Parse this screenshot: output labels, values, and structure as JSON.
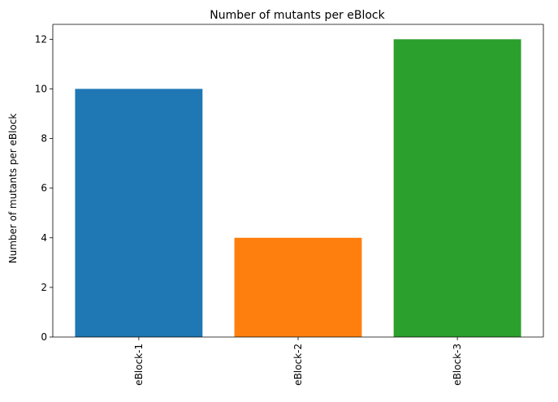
{
  "chart_data": {
    "type": "bar",
    "title": "Number of mutants per eBlock",
    "xlabel": "",
    "ylabel": "Number of mutants per eBlock",
    "categories": [
      "eBlock-1",
      "eBlock-2",
      "eBlock-3"
    ],
    "values": [
      10,
      4,
      12
    ],
    "colors": [
      "#1f77b4",
      "#ff7f0e",
      "#2ca02c"
    ],
    "ylim": [
      0,
      12.6
    ],
    "yticks": [
      0,
      2,
      4,
      6,
      8,
      10,
      12
    ],
    "xtick_rotation": "vertical",
    "grid": false,
    "legend": "none"
  }
}
